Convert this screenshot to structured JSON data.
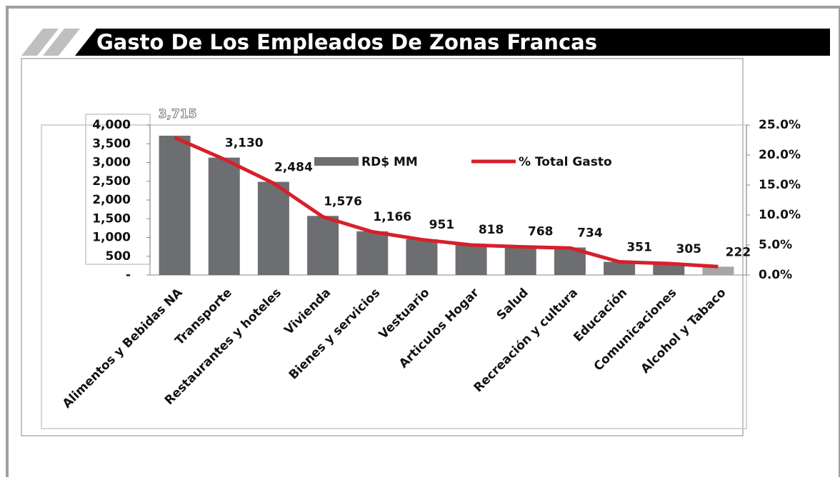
{
  "chart_data": {
    "type": "bar",
    "title": "Gasto De Los Empleados De Zonas Francas",
    "categories": [
      "Alimentos y Bebidas NA",
      "Transporte",
      "Restaurantes y hoteles",
      "Vivienda",
      "Bienes y servicios",
      "Vestuario",
      "Articulos Hogar",
      "Salud",
      "Recreación y cultura",
      "Educación",
      "Comunicaciones",
      "Alcohol y Tabaco"
    ],
    "series": [
      {
        "name": "RD$ MM",
        "type": "bar",
        "color": "#6d6e71",
        "colors": [
          "#6d6e71",
          "#6d6e71",
          "#6d6e71",
          "#6d6e71",
          "#6d6e71",
          "#6d6e71",
          "#6d6e71",
          "#6d6e71",
          "#6d6e71",
          "#6d6e71",
          "#6d6e71",
          "#a6a6a6"
        ],
        "values": [
          3715,
          3130,
          2484,
          1576,
          1166,
          951,
          818,
          768,
          734,
          351,
          305,
          222
        ],
        "value_labels": [
          "3,715",
          "3,130",
          "2,484",
          "1,576",
          "1,166",
          "951",
          "818",
          "768",
          "734",
          "351",
          "305",
          "222"
        ]
      },
      {
        "name": "% Total Gasto",
        "type": "line",
        "axis": "y2",
        "color": "#d7202a",
        "values": [
          22.9,
          19.3,
          15.3,
          9.7,
          7.2,
          5.9,
          5.0,
          4.7,
          4.5,
          2.2,
          1.9,
          1.4
        ]
      }
    ],
    "ylim": [
      0,
      4000
    ],
    "yticks": [
      {
        "value": 0,
        "label": "-"
      },
      500,
      {
        "value": 1000,
        "label": "1,000"
      },
      {
        "value": 1500,
        "label": "1,500"
      },
      {
        "value": 2000,
        "label": "2,000"
      },
      {
        "value": 2500,
        "label": "2,500"
      },
      {
        "value": 3000,
        "label": "3,000"
      },
      {
        "value": 3500,
        "label": "3,500"
      },
      {
        "value": 4000,
        "label": "4,000"
      }
    ],
    "y2lim": [
      0,
      25
    ],
    "y2ticks": [
      {
        "value": 0,
        "label": "0.0%"
      },
      {
        "value": 5,
        "label": "5.0%"
      },
      {
        "value": 10,
        "label": "10.0%"
      },
      {
        "value": 15,
        "label": "15.0%"
      },
      {
        "value": 20,
        "label": "20.0%"
      },
      {
        "value": 25,
        "label": "25.0%"
      }
    ],
    "legend": "top",
    "grid": false
  }
}
